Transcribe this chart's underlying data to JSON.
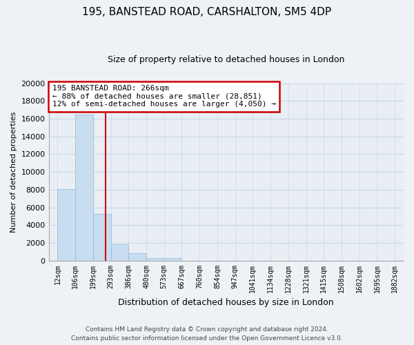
{
  "title": "195, BANSTEAD ROAD, CARSHALTON, SM5 4DP",
  "subtitle": "Size of property relative to detached houses in London",
  "xlabel": "Distribution of detached houses by size in London",
  "ylabel": "Number of detached properties",
  "bar_values": [
    8100,
    16500,
    5300,
    1850,
    800,
    300,
    250,
    0,
    0,
    0,
    0,
    0,
    0,
    0,
    0,
    0,
    0,
    0,
    0
  ],
  "bar_labels": [
    "12sqm",
    "106sqm",
    "199sqm",
    "293sqm",
    "386sqm",
    "480sqm",
    "573sqm",
    "667sqm",
    "760sqm",
    "854sqm",
    "947sqm",
    "1041sqm",
    "1134sqm",
    "1228sqm",
    "1321sqm",
    "1415sqm",
    "1508sqm",
    "1602sqm",
    "1695sqm",
    "1882sqm"
  ],
  "bar_color": "#c8ddef",
  "bar_edge_color": "#90b8d8",
  "grid_color": "#c8d8e8",
  "vline_color": "#cc0000",
  "annotation_title": "195 BANSTEAD ROAD: 266sqm",
  "annotation_line1": "← 88% of detached houses are smaller (28,851)",
  "annotation_line2": "12% of semi-detached houses are larger (4,050) →",
  "annotation_box_color": "#ffffff",
  "annotation_box_edge": "#cc0000",
  "ylim": [
    0,
    20000
  ],
  "yticks": [
    0,
    2000,
    4000,
    6000,
    8000,
    10000,
    12000,
    14000,
    16000,
    18000,
    20000
  ],
  "footnote1": "Contains HM Land Registry data © Crown copyright and database right 2024.",
  "footnote2": "Contains public sector information licensed under the Open Government Licence v3.0.",
  "bg_color": "#eef2f6",
  "plot_bg_color": "#e8eef4"
}
